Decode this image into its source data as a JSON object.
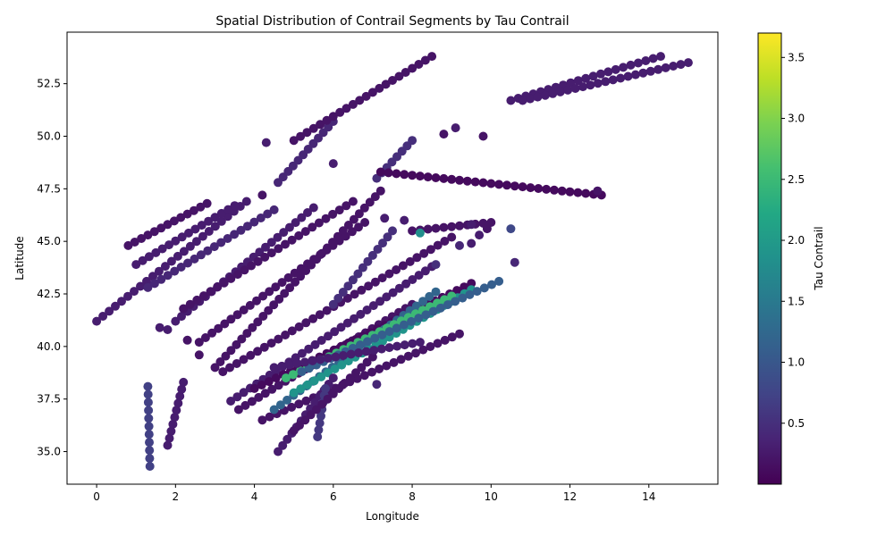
{
  "chart_data": {
    "type": "scatter",
    "title": "Spatial Distribution of Contrail Segments by Tau Contrail",
    "xlabel": "Longitude",
    "ylabel": "Latitude",
    "xlim": [
      -0.75,
      15.75
    ],
    "ylim": [
      33.45,
      54.95
    ],
    "xticks": [
      0,
      2,
      4,
      6,
      8,
      10,
      12,
      14
    ],
    "yticks": [
      35.0,
      37.5,
      40.0,
      42.5,
      45.0,
      47.5,
      50.0,
      52.5
    ],
    "grid": false,
    "colorbar": {
      "label": "Tau Contrail",
      "colormap": "viridis",
      "range": [
        0.0,
        3.7
      ],
      "ticks": [
        0.5,
        1.0,
        1.5,
        2.0,
        2.5,
        3.0,
        3.5
      ]
    },
    "colors": {
      "viridis": [
        "#440154",
        "#482475",
        "#414487",
        "#355f8d",
        "#2a788e",
        "#21918c",
        "#22a884",
        "#44bf70",
        "#7ad151",
        "#bddf26",
        "#fde725"
      ]
    },
    "segments": [
      {
        "from": [
          0.0,
          41.2
        ],
        "to": [
          3.8,
          46.9
        ],
        "tau": 0.3
      },
      {
        "from": [
          0.8,
          44.8
        ],
        "to": [
          2.8,
          46.8
        ],
        "tau": 0.2
      },
      {
        "from": [
          1.0,
          43.9
        ],
        "to": [
          3.5,
          46.7
        ],
        "tau": 0.3
      },
      {
        "from": [
          1.3,
          42.8
        ],
        "to": [
          4.5,
          46.5
        ],
        "tau": 0.4
      },
      {
        "from": [
          2.0,
          41.2
        ],
        "to": [
          5.5,
          46.6
        ],
        "tau": 0.3
      },
      {
        "from": [
          2.2,
          41.8
        ],
        "to": [
          6.5,
          46.9
        ],
        "tau": 0.2
      },
      {
        "from": [
          2.6,
          40.2
        ],
        "to": [
          6.8,
          45.9
        ],
        "tau": 0.2
      },
      {
        "from": [
          3.0,
          39.0
        ],
        "to": [
          7.2,
          47.4
        ],
        "tau": 0.2
      },
      {
        "from": [
          3.2,
          38.8
        ],
        "to": [
          9.0,
          45.2
        ],
        "tau": 0.2
      },
      {
        "from": [
          3.4,
          37.4
        ],
        "to": [
          8.5,
          43.8
        ],
        "tau": 0.3
      },
      {
        "from": [
          3.6,
          37.0
        ],
        "to": [
          8.0,
          42.0
        ],
        "tau": 0.2
      },
      {
        "from": [
          4.0,
          38.0
        ],
        "to": [
          9.5,
          43.0
        ],
        "tau": 0.1
      },
      {
        "from": [
          4.2,
          36.5
        ],
        "to": [
          9.2,
          40.6
        ],
        "tau": 0.2
      },
      {
        "from": [
          4.5,
          37.0
        ],
        "to": [
          8.6,
          42.6
        ],
        "tau": 1.2
      },
      {
        "from": [
          5.0,
          37.8
        ],
        "to": [
          9.5,
          42.7
        ],
        "tau": 1.9
      },
      {
        "from": [
          4.8,
          38.5
        ],
        "to": [
          9.0,
          42.4
        ],
        "tau": 2.5
      },
      {
        "from": [
          5.2,
          38.8
        ],
        "to": [
          10.2,
          43.1
        ],
        "tau": 1.1
      },
      {
        "from": [
          4.6,
          35.0
        ],
        "to": [
          6.0,
          38.5
        ],
        "tau": 0.3
      },
      {
        "from": [
          5.6,
          35.7
        ],
        "to": [
          5.8,
          38.0
        ],
        "tau": 0.6
      },
      {
        "from": [
          5.0,
          36.0
        ],
        "to": [
          7.0,
          39.5
        ],
        "tau": 0.2
      },
      {
        "from": [
          4.5,
          39.0
        ],
        "to": [
          8.2,
          40.2
        ],
        "tau": 0.3
      },
      {
        "from": [
          1.35,
          34.3
        ],
        "to": [
          1.3,
          38.1
        ],
        "tau": 0.7
      },
      {
        "from": [
          1.8,
          35.3
        ],
        "to": [
          2.2,
          38.3
        ],
        "tau": 0.3
      },
      {
        "from": [
          6.0,
          42.0
        ],
        "to": [
          7.5,
          45.5
        ],
        "tau": 0.5
      },
      {
        "from": [
          7.1,
          48.0
        ],
        "to": [
          8.0,
          49.8
        ],
        "tau": 0.5
      },
      {
        "from": [
          7.2,
          48.3
        ],
        "to": [
          12.8,
          47.2
        ],
        "tau": 0.1
      },
      {
        "from": [
          4.6,
          47.8
        ],
        "to": [
          6.0,
          50.7
        ],
        "tau": 0.4
      },
      {
        "from": [
          5.0,
          49.8
        ],
        "to": [
          8.5,
          53.8
        ],
        "tau": 0.2
      },
      {
        "from": [
          10.5,
          51.7
        ],
        "to": [
          14.3,
          53.8
        ],
        "tau": 0.3
      },
      {
        "from": [
          10.8,
          51.7
        ],
        "to": [
          15.0,
          53.5
        ],
        "tau": 0.3
      },
      {
        "from": [
          8.0,
          45.5
        ],
        "to": [
          10.0,
          45.9
        ],
        "tau": 0.2
      }
    ],
    "points": [
      {
        "x": 4.3,
        "y": 49.7,
        "tau": 0.3
      },
      {
        "x": 8.8,
        "y": 50.1,
        "tau": 0.2
      },
      {
        "x": 9.1,
        "y": 50.4,
        "tau": 0.3
      },
      {
        "x": 9.8,
        "y": 50.0,
        "tau": 0.2
      },
      {
        "x": 4.2,
        "y": 47.2,
        "tau": 0.2
      },
      {
        "x": 6.0,
        "y": 48.7,
        "tau": 0.3
      },
      {
        "x": 1.6,
        "y": 40.9,
        "tau": 0.3
      },
      {
        "x": 1.8,
        "y": 40.8,
        "tau": 0.3
      },
      {
        "x": 2.3,
        "y": 40.3,
        "tau": 0.2
      },
      {
        "x": 2.6,
        "y": 39.6,
        "tau": 0.2
      },
      {
        "x": 7.1,
        "y": 38.2,
        "tau": 0.4
      },
      {
        "x": 8.6,
        "y": 43.9,
        "tau": 0.5
      },
      {
        "x": 9.5,
        "y": 45.8,
        "tau": 0.3
      },
      {
        "x": 9.9,
        "y": 45.6,
        "tau": 0.2
      },
      {
        "x": 10.5,
        "y": 45.6,
        "tau": 0.8
      },
      {
        "x": 10.6,
        "y": 44.0,
        "tau": 0.4
      },
      {
        "x": 9.2,
        "y": 44.8,
        "tau": 0.4
      },
      {
        "x": 9.5,
        "y": 44.9,
        "tau": 0.3
      },
      {
        "x": 8.2,
        "y": 45.4,
        "tau": 1.8
      },
      {
        "x": 9.7,
        "y": 45.3,
        "tau": 0.3
      },
      {
        "x": 7.3,
        "y": 46.1,
        "tau": 0.3
      },
      {
        "x": 7.8,
        "y": 46.0,
        "tau": 0.3
      },
      {
        "x": 12.7,
        "y": 47.4,
        "tau": 0.2
      }
    ]
  }
}
